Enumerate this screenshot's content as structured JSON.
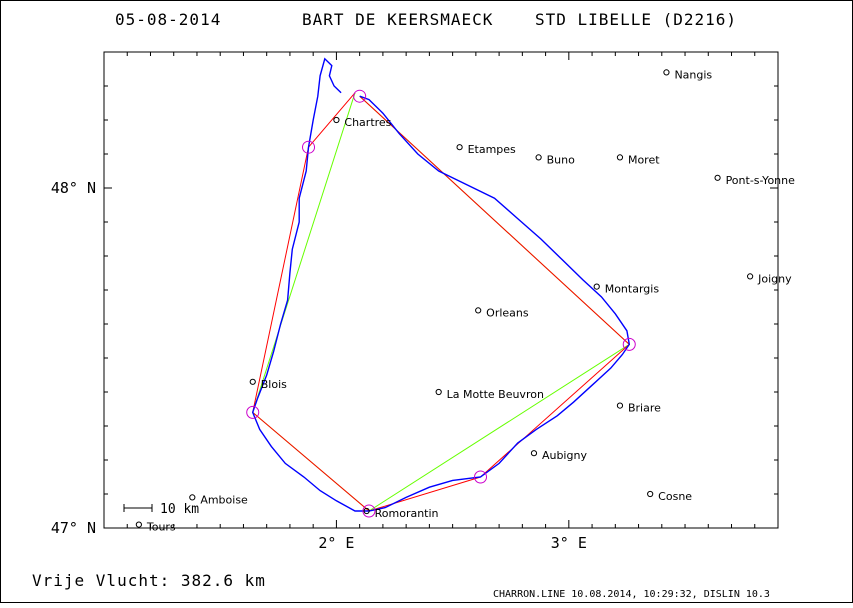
{
  "header": {
    "date": "05-08-2014",
    "pilot": "BART DE KEERSMAECK",
    "glider": "STD LIBELLE (D2216)"
  },
  "footer": {
    "distance": "Vrije Vlucht:  382.6 km",
    "credit": "CHARRON.LINE 10.08.2014, 10:29:32, DISLIN 10.3"
  },
  "map": {
    "lon_range": [
      1.0,
      3.9
    ],
    "lat_range": [
      47.0,
      48.4
    ],
    "x_ticks": [
      {
        "lon": 2.0,
        "label": "2° E"
      },
      {
        "lon": 3.0,
        "label": "3° E"
      }
    ],
    "y_ticks": [
      {
        "lat": 48.0,
        "label": "48° N"
      },
      {
        "lat": 47.0,
        "label": "47° N"
      }
    ],
    "scale_label": "10 km",
    "colors": {
      "track": "#0000ff",
      "task_legs": "#ff0000",
      "optimized_legs": "#66ff00",
      "turnpoints": "#cc00cc",
      "frame": "#000000"
    }
  },
  "towns": [
    {
      "name": "Nangis",
      "lon": 3.42,
      "lat": 48.34
    },
    {
      "name": "Chartres",
      "lon": 2.0,
      "lat": 48.2
    },
    {
      "name": "Etampes",
      "lon": 2.53,
      "lat": 48.12
    },
    {
      "name": "Buno",
      "lon": 2.87,
      "lat": 48.09
    },
    {
      "name": "Moret",
      "lon": 3.22,
      "lat": 48.09
    },
    {
      "name": "Pont-s-Yonne",
      "lon": 3.64,
      "lat": 48.03
    },
    {
      "name": "Joigny",
      "lon": 3.78,
      "lat": 47.74
    },
    {
      "name": "Montargis",
      "lon": 3.12,
      "lat": 47.71
    },
    {
      "name": "Orleans",
      "lon": 2.61,
      "lat": 47.64
    },
    {
      "name": "Blois",
      "lon": 1.64,
      "lat": 47.43
    },
    {
      "name": "La Motte Beuvron",
      "lon": 2.44,
      "lat": 47.4
    },
    {
      "name": "Briare",
      "lon": 3.22,
      "lat": 47.36
    },
    {
      "name": "Aubigny",
      "lon": 2.85,
      "lat": 47.22
    },
    {
      "name": "Amboise",
      "lon": 1.38,
      "lat": 47.09
    },
    {
      "name": "Cosne",
      "lon": 3.35,
      "lat": 47.1
    },
    {
      "name": "Romorantin",
      "lon": 2.13,
      "lat": 47.05
    },
    {
      "name": "Tours",
      "lon": 1.15,
      "lat": 47.01
    }
  ],
  "task_points": [
    {
      "lon": 2.1,
      "lat": 48.27
    },
    {
      "lon": 3.26,
      "lat": 47.54
    },
    {
      "lon": 2.62,
      "lat": 47.15
    },
    {
      "lon": 2.14,
      "lat": 47.05
    },
    {
      "lon": 1.64,
      "lat": 47.34
    },
    {
      "lon": 1.88,
      "lat": 48.12
    },
    {
      "lon": 2.08,
      "lat": 48.28
    }
  ],
  "optimized_points": [
    {
      "lon": 2.08,
      "lat": 48.28
    },
    {
      "lon": 1.64,
      "lat": 47.34
    },
    {
      "lon": 2.14,
      "lat": 47.05
    },
    {
      "lon": 3.26,
      "lat": 47.54
    },
    {
      "lon": 2.1,
      "lat": 48.27
    }
  ],
  "track": [
    [
      2.02,
      48.28
    ],
    [
      1.99,
      48.3
    ],
    [
      1.97,
      48.33
    ],
    [
      1.98,
      48.36
    ],
    [
      1.95,
      48.38
    ],
    [
      1.93,
      48.33
    ],
    [
      1.92,
      48.27
    ],
    [
      1.9,
      48.2
    ],
    [
      1.88,
      48.12
    ],
    [
      1.87,
      48.05
    ],
    [
      1.84,
      47.97
    ],
    [
      1.84,
      47.9
    ],
    [
      1.81,
      47.82
    ],
    [
      1.8,
      47.75
    ],
    [
      1.79,
      47.67
    ],
    [
      1.76,
      47.6
    ],
    [
      1.73,
      47.52
    ],
    [
      1.7,
      47.45
    ],
    [
      1.66,
      47.38
    ],
    [
      1.64,
      47.34
    ],
    [
      1.67,
      47.29
    ],
    [
      1.72,
      47.24
    ],
    [
      1.78,
      47.19
    ],
    [
      1.86,
      47.15
    ],
    [
      1.93,
      47.11
    ],
    [
      2.0,
      47.08
    ],
    [
      2.08,
      47.05
    ],
    [
      2.14,
      47.05
    ],
    [
      2.21,
      47.06
    ],
    [
      2.3,
      47.09
    ],
    [
      2.4,
      47.12
    ],
    [
      2.5,
      47.14
    ],
    [
      2.62,
      47.15
    ],
    [
      2.7,
      47.19
    ],
    [
      2.78,
      47.25
    ],
    [
      2.86,
      47.29
    ],
    [
      2.95,
      47.33
    ],
    [
      3.02,
      47.37
    ],
    [
      3.1,
      47.42
    ],
    [
      3.18,
      47.47
    ],
    [
      3.23,
      47.51
    ],
    [
      3.26,
      47.54
    ],
    [
      3.25,
      47.58
    ],
    [
      3.2,
      47.63
    ],
    [
      3.14,
      47.68
    ],
    [
      3.06,
      47.73
    ],
    [
      2.97,
      47.79
    ],
    [
      2.88,
      47.85
    ],
    [
      2.78,
      47.91
    ],
    [
      2.68,
      47.97
    ],
    [
      2.56,
      48.01
    ],
    [
      2.44,
      48.05
    ],
    [
      2.35,
      48.1
    ],
    [
      2.27,
      48.16
    ],
    [
      2.2,
      48.22
    ],
    [
      2.14,
      48.26
    ],
    [
      2.1,
      48.27
    ]
  ]
}
